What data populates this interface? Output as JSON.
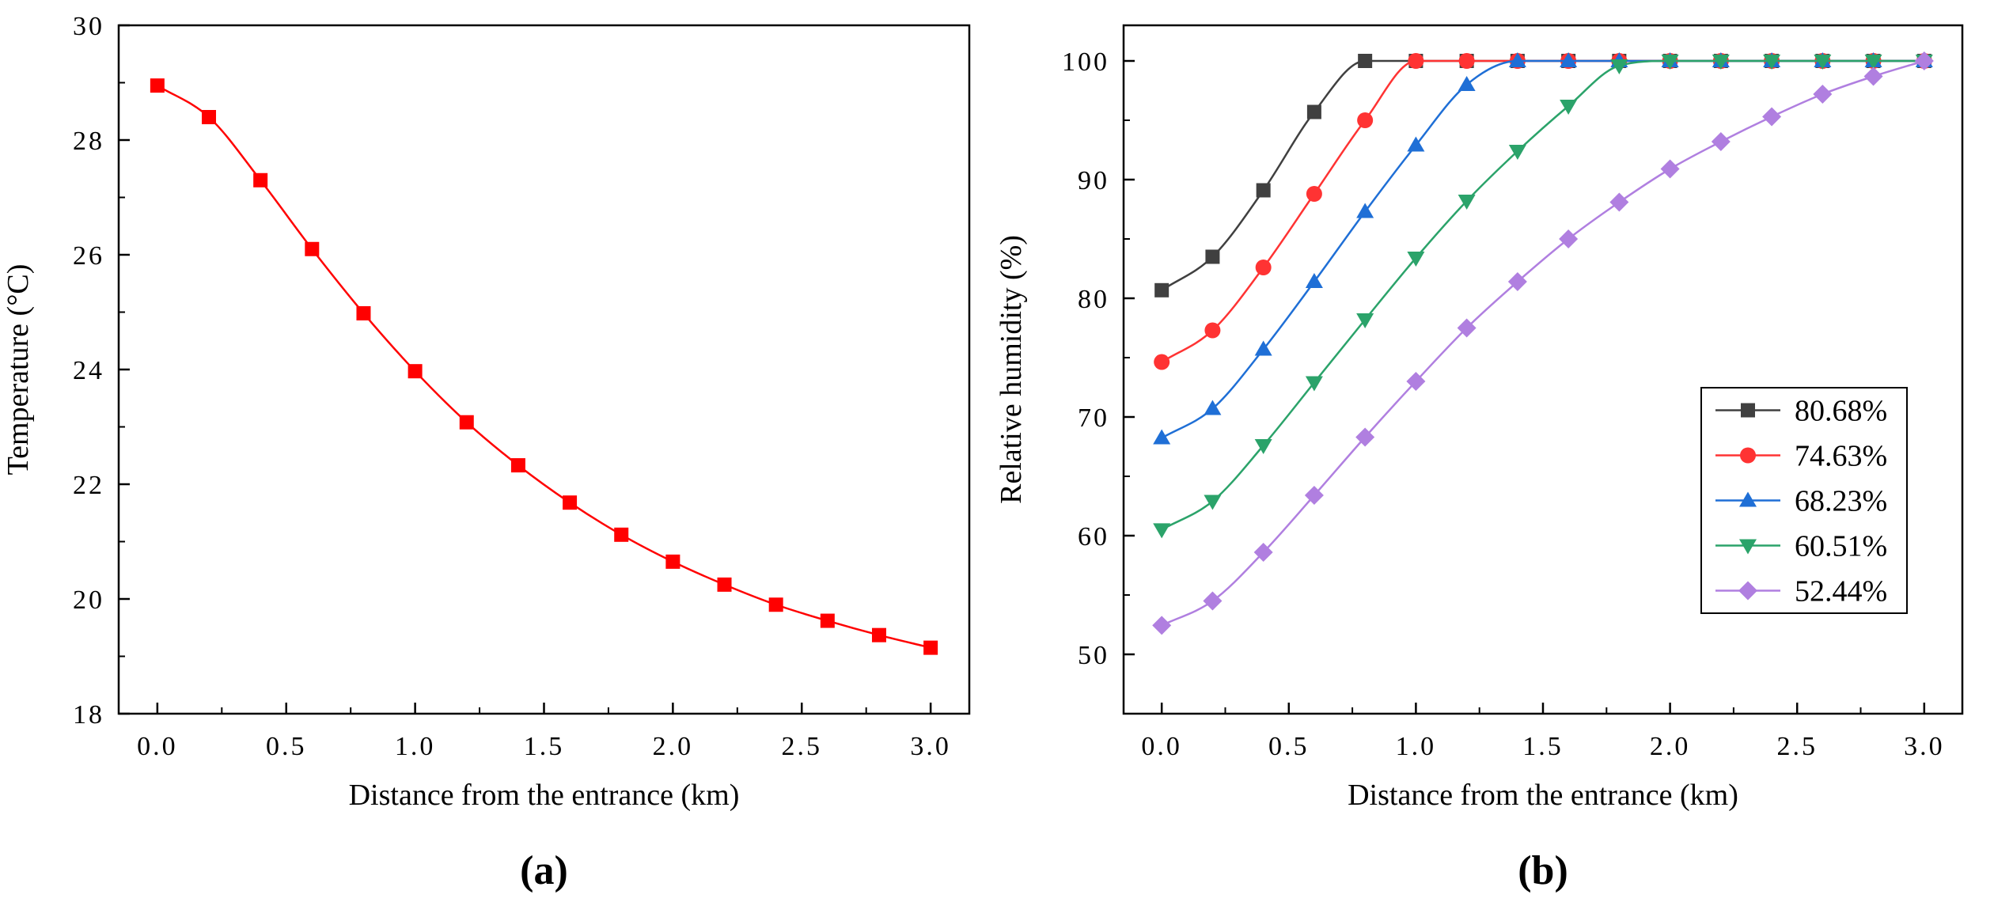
{
  "chart_data": [
    {
      "type": "line",
      "panel_label": "(a)",
      "title": "",
      "xlabel": "Distance from the entrance (km)",
      "ylabel": "Temperature (°C)",
      "xlim": [
        -0.15,
        3.15
      ],
      "ylim": [
        18,
        30
      ],
      "xticks": [
        0.0,
        0.5,
        1.0,
        1.5,
        2.0,
        2.5,
        3.0
      ],
      "xtick_labels": [
        "0.0",
        "0.5",
        "1.0",
        "1.5",
        "2.0",
        "2.5",
        "3.0"
      ],
      "yticks": [
        18,
        20,
        22,
        24,
        26,
        28,
        30
      ],
      "ytick_labels": [
        "18",
        "20",
        "22",
        "24",
        "26",
        "28",
        "30"
      ],
      "grid": false,
      "legend": "none",
      "series": [
        {
          "name": "Temperature",
          "color": "#ff0000",
          "marker": "square",
          "x": [
            0.0,
            0.2,
            0.4,
            0.6,
            0.8,
            1.0,
            1.2,
            1.4,
            1.6,
            1.8,
            2.0,
            2.2,
            2.4,
            2.6,
            2.8,
            3.0
          ],
          "values": [
            28.95,
            28.4,
            27.3,
            26.1,
            24.98,
            23.97,
            23.08,
            22.33,
            21.68,
            21.12,
            20.65,
            20.25,
            19.9,
            19.62,
            19.37,
            19.15
          ]
        }
      ]
    },
    {
      "type": "line",
      "panel_label": "(b)",
      "title": "",
      "xlabel": "Distance from the entrance (km)",
      "ylabel": "Relative humidity (%)",
      "xlim": [
        -0.15,
        3.15
      ],
      "ylim": [
        45,
        103
      ],
      "xticks": [
        0.0,
        0.5,
        1.0,
        1.5,
        2.0,
        2.5,
        3.0
      ],
      "xtick_labels": [
        "0.0",
        "0.5",
        "1.0",
        "1.5",
        "2.0",
        "2.5",
        "3.0"
      ],
      "yticks": [
        50,
        60,
        70,
        80,
        90,
        100
      ],
      "ytick_labels": [
        "50",
        "60",
        "70",
        "80",
        "90",
        "100"
      ],
      "grid": false,
      "legend": "center-right",
      "series": [
        {
          "name": "80.68%",
          "color": "#404040",
          "marker": "square",
          "x": [
            0.0,
            0.2,
            0.4,
            0.6,
            0.8,
            1.0,
            1.2,
            1.4,
            1.6,
            1.8,
            2.0,
            2.2,
            2.4,
            2.6,
            2.8,
            3.0
          ],
          "values": [
            80.68,
            83.5,
            89.1,
            95.7,
            100,
            100,
            100,
            100,
            100,
            100,
            100,
            100,
            100,
            100,
            100,
            100
          ]
        },
        {
          "name": "74.63%",
          "color": "#ff3333",
          "marker": "circle",
          "x": [
            0.0,
            0.2,
            0.4,
            0.6,
            0.8,
            1.0,
            1.2,
            1.4,
            1.6,
            1.8,
            2.0,
            2.2,
            2.4,
            2.6,
            2.8,
            3.0
          ],
          "values": [
            74.63,
            77.3,
            82.6,
            88.8,
            95.0,
            100,
            100,
            100,
            100,
            100,
            100,
            100,
            100,
            100,
            100,
            100
          ]
        },
        {
          "name": "68.23%",
          "color": "#1f6fd6",
          "marker": "triangle-up",
          "x": [
            0.0,
            0.2,
            0.4,
            0.6,
            0.8,
            1.0,
            1.2,
            1.4,
            1.6,
            1.8,
            2.0,
            2.2,
            2.4,
            2.6,
            2.8,
            3.0
          ],
          "values": [
            68.23,
            70.7,
            75.7,
            81.4,
            87.3,
            92.9,
            98.0,
            100,
            100,
            100,
            100,
            100,
            100,
            100,
            100,
            100
          ]
        },
        {
          "name": "60.51%",
          "color": "#2ba36a",
          "marker": "triangle-down",
          "x": [
            0.0,
            0.2,
            0.4,
            0.6,
            0.8,
            1.0,
            1.2,
            1.4,
            1.6,
            1.8,
            2.0,
            2.2,
            2.4,
            2.6,
            2.8,
            3.0
          ],
          "values": [
            60.51,
            62.9,
            67.6,
            72.9,
            78.2,
            83.4,
            88.2,
            92.4,
            96.2,
            99.6,
            100,
            100,
            100,
            100,
            100,
            100
          ]
        },
        {
          "name": "52.44%",
          "color": "#b07fe0",
          "marker": "diamond",
          "x": [
            0.0,
            0.2,
            0.4,
            0.6,
            0.8,
            1.0,
            1.2,
            1.4,
            1.6,
            1.8,
            2.0,
            2.2,
            2.4,
            2.6,
            2.8,
            3.0
          ],
          "values": [
            52.44,
            54.5,
            58.6,
            63.4,
            68.3,
            73.0,
            77.5,
            81.4,
            85.0,
            88.1,
            90.9,
            93.2,
            95.3,
            97.2,
            98.7,
            100
          ]
        }
      ]
    }
  ]
}
